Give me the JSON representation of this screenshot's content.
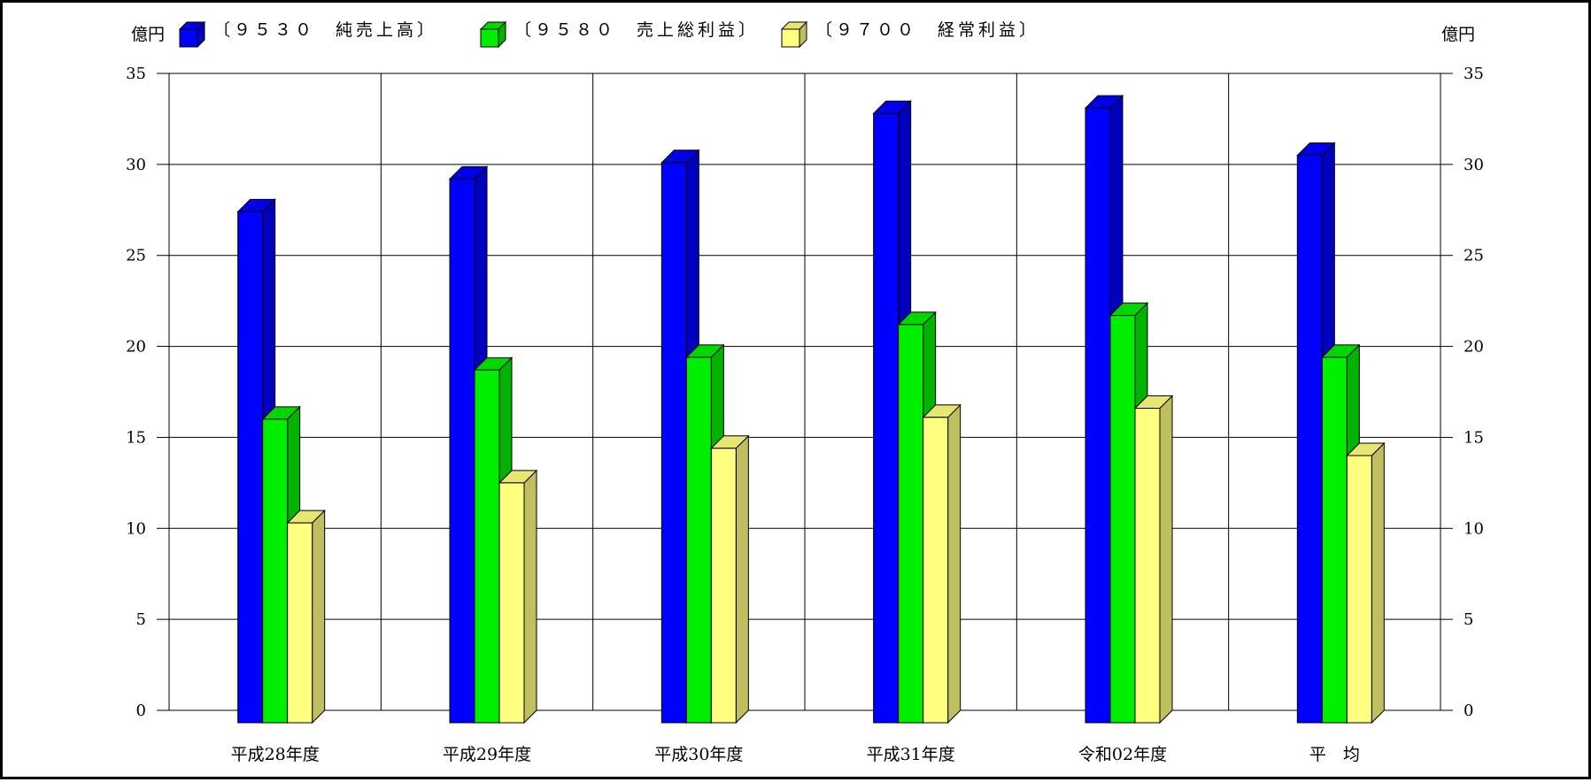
{
  "chart_data": {
    "type": "bar",
    "unit_left": "億円",
    "unit_right": "億円",
    "categories": [
      "平成28年度",
      "平成29年度",
      "平成30年度",
      "平成31年度",
      "令和02年度",
      "平　均"
    ],
    "series": [
      {
        "name": "〔９５３０　純売上高〕",
        "color": "#0000ff",
        "values": [
          27.4,
          29.2,
          30.1,
          32.8,
          33.1,
          30.5
        ]
      },
      {
        "name": "〔９５８０　売上総利益〕",
        "color": "#00ee00",
        "values": [
          16.0,
          18.7,
          19.4,
          21.2,
          21.7,
          19.4
        ]
      },
      {
        "name": "〔９７００　経常利益〕",
        "color": "#ffff80",
        "values": [
          10.3,
          12.5,
          14.4,
          16.1,
          16.6,
          14.0
        ]
      }
    ],
    "ylim": [
      0,
      35
    ],
    "yticks": [
      0,
      5,
      10,
      15,
      20,
      25,
      30,
      35
    ],
    "grid": true,
    "legend_position": "top"
  }
}
